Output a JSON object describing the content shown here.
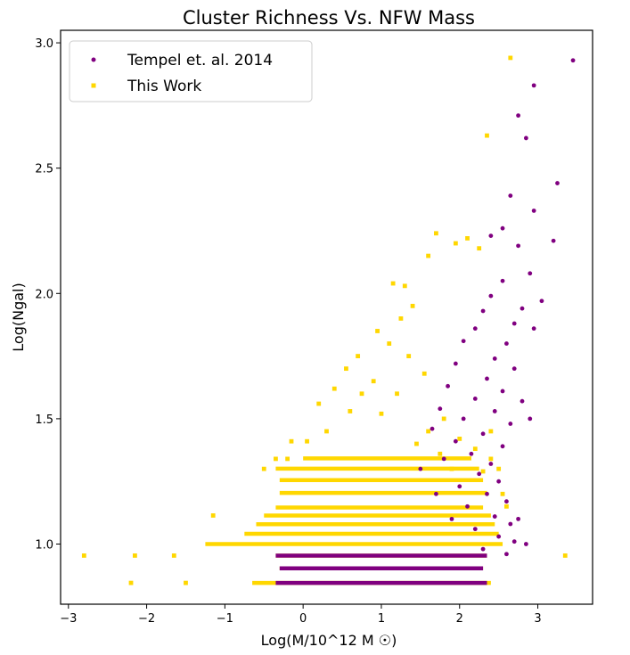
{
  "chart_data": {
    "type": "scatter",
    "title": "Cluster Richness Vs. NFW Mass",
    "xlabel": "Log(M/10^12 M ☉)",
    "ylabel": "Log(Ngal)",
    "xlim": [
      -3.1,
      3.7
    ],
    "ylim": [
      0.76,
      3.05
    ],
    "x_ticks": [
      -3,
      -2,
      -1,
      0,
      1,
      2,
      3
    ],
    "x_tick_labels": [
      "−3",
      "−2",
      "−1",
      "0",
      "1",
      "2",
      "3"
    ],
    "y_ticks": [
      1.0,
      1.5,
      2.0,
      2.5,
      3.0
    ],
    "y_tick_labels": [
      "1.0",
      "1.5",
      "2.0",
      "2.5",
      "3.0"
    ],
    "grid": false,
    "legend_position": "top-left",
    "series": [
      {
        "name": "Tempel et. al. 2014",
        "color": "#800080",
        "points": [
          [
            3.45,
            2.93
          ],
          [
            2.95,
            2.83
          ],
          [
            2.75,
            2.71
          ],
          [
            2.85,
            2.62
          ],
          [
            3.25,
            2.44
          ],
          [
            2.65,
            2.39
          ],
          [
            2.95,
            2.33
          ],
          [
            2.55,
            2.26
          ],
          [
            2.75,
            2.19
          ],
          [
            3.2,
            2.21
          ],
          [
            2.4,
            2.23
          ],
          [
            2.9,
            2.08
          ],
          [
            3.05,
            1.97
          ],
          [
            2.55,
            2.05
          ],
          [
            2.8,
            1.94
          ],
          [
            2.4,
            1.99
          ],
          [
            2.7,
            1.88
          ],
          [
            2.3,
            1.93
          ],
          [
            2.6,
            1.8
          ],
          [
            2.2,
            1.86
          ],
          [
            2.95,
            1.86
          ],
          [
            2.45,
            1.74
          ],
          [
            2.05,
            1.81
          ],
          [
            2.7,
            1.7
          ],
          [
            2.35,
            1.66
          ],
          [
            1.95,
            1.72
          ],
          [
            2.55,
            1.61
          ],
          [
            2.2,
            1.58
          ],
          [
            2.8,
            1.57
          ],
          [
            1.85,
            1.63
          ],
          [
            2.45,
            1.53
          ],
          [
            2.05,
            1.5
          ],
          [
            2.65,
            1.48
          ],
          [
            1.75,
            1.54
          ],
          [
            2.3,
            1.44
          ],
          [
            1.95,
            1.41
          ],
          [
            2.55,
            1.39
          ],
          [
            1.65,
            1.46
          ],
          [
            2.15,
            1.36
          ],
          [
            2.4,
            1.32
          ],
          [
            1.8,
            1.34
          ],
          [
            2.25,
            1.28
          ],
          [
            2.5,
            1.25
          ],
          [
            2.0,
            1.23
          ],
          [
            2.35,
            1.2
          ],
          [
            2.6,
            1.17
          ],
          [
            2.1,
            1.15
          ],
          [
            2.45,
            1.11
          ],
          [
            2.65,
            1.08
          ],
          [
            2.2,
            1.06
          ],
          [
            2.5,
            1.03
          ],
          [
            2.7,
            1.01
          ],
          [
            2.3,
            0.98
          ],
          [
            2.6,
            0.96
          ],
          [
            1.9,
            1.1
          ],
          [
            1.7,
            1.2
          ],
          [
            1.5,
            1.3
          ],
          [
            2.75,
            1.1
          ],
          [
            2.85,
            1.0
          ],
          [
            2.9,
            1.5
          ]
        ],
        "bands": [
          {
            "y": 0.954,
            "x_from": -0.35,
            "x_to": 2.35
          },
          {
            "y": 0.903,
            "x_from": -0.3,
            "x_to": 2.3
          },
          {
            "y": 0.845,
            "x_from": -0.35,
            "x_to": 2.35
          }
        ]
      },
      {
        "name": "This Work",
        "color": "#ffd700",
        "points": [
          [
            2.65,
            2.94
          ],
          [
            2.35,
            2.63
          ],
          [
            -2.8,
            0.954
          ],
          [
            -2.2,
            0.845
          ],
          [
            -2.15,
            0.954
          ],
          [
            -1.65,
            0.954
          ],
          [
            -1.5,
            0.845
          ],
          [
            -1.15,
            1.114
          ],
          [
            3.35,
            0.954
          ],
          [
            2.25,
            2.18
          ],
          [
            2.1,
            2.22
          ],
          [
            1.7,
            2.24
          ],
          [
            1.95,
            2.2
          ],
          [
            1.6,
            2.15
          ],
          [
            1.3,
            2.03
          ],
          [
            1.15,
            2.04
          ],
          [
            0.95,
            1.85
          ],
          [
            1.4,
            1.95
          ],
          [
            1.1,
            1.8
          ],
          [
            0.7,
            1.75
          ],
          [
            1.35,
            1.75
          ],
          [
            0.55,
            1.7
          ],
          [
            0.9,
            1.65
          ],
          [
            1.55,
            1.68
          ],
          [
            0.4,
            1.62
          ],
          [
            0.75,
            1.6
          ],
          [
            1.2,
            1.6
          ],
          [
            0.2,
            1.56
          ],
          [
            0.6,
            1.53
          ],
          [
            1.0,
            1.52
          ],
          [
            -0.15,
            1.41
          ],
          [
            0.05,
            1.41
          ],
          [
            -0.35,
            1.34
          ],
          [
            -0.2,
            1.34
          ],
          [
            -0.5,
            1.3
          ],
          [
            0.3,
            1.45
          ],
          [
            1.8,
            1.5
          ],
          [
            1.6,
            1.45
          ],
          [
            2.0,
            1.42
          ],
          [
            1.45,
            1.4
          ],
          [
            1.75,
            1.36
          ],
          [
            2.2,
            1.38
          ],
          [
            2.4,
            1.34
          ],
          [
            1.9,
            1.3
          ],
          [
            2.3,
            1.29
          ],
          [
            2.55,
            1.2
          ],
          [
            2.5,
            1.3
          ],
          [
            2.4,
            1.45
          ],
          [
            2.6,
            1.15
          ],
          [
            1.25,
            1.9
          ]
        ],
        "bands": [
          {
            "y": 1.342,
            "x_from": 0.0,
            "x_to": 2.15
          },
          {
            "y": 1.301,
            "x_from": -0.35,
            "x_to": 2.25
          },
          {
            "y": 1.255,
            "x_from": -0.3,
            "x_to": 2.3
          },
          {
            "y": 1.204,
            "x_from": -0.3,
            "x_to": 2.35
          },
          {
            "y": 1.146,
            "x_from": -0.35,
            "x_to": 2.3
          },
          {
            "y": 1.114,
            "x_from": -0.5,
            "x_to": 2.4
          },
          {
            "y": 1.079,
            "x_from": -0.6,
            "x_to": 2.45
          },
          {
            "y": 1.041,
            "x_from": -0.75,
            "x_to": 2.5
          },
          {
            "y": 1.0,
            "x_from": -1.25,
            "x_to": 2.55
          },
          {
            "y": 0.954,
            "x_from": -0.35,
            "x_to": 2.35
          },
          {
            "y": 0.903,
            "x_from": -0.3,
            "x_to": 2.3
          },
          {
            "y": 0.845,
            "x_from": -0.65,
            "x_to": 2.4
          }
        ]
      }
    ]
  }
}
